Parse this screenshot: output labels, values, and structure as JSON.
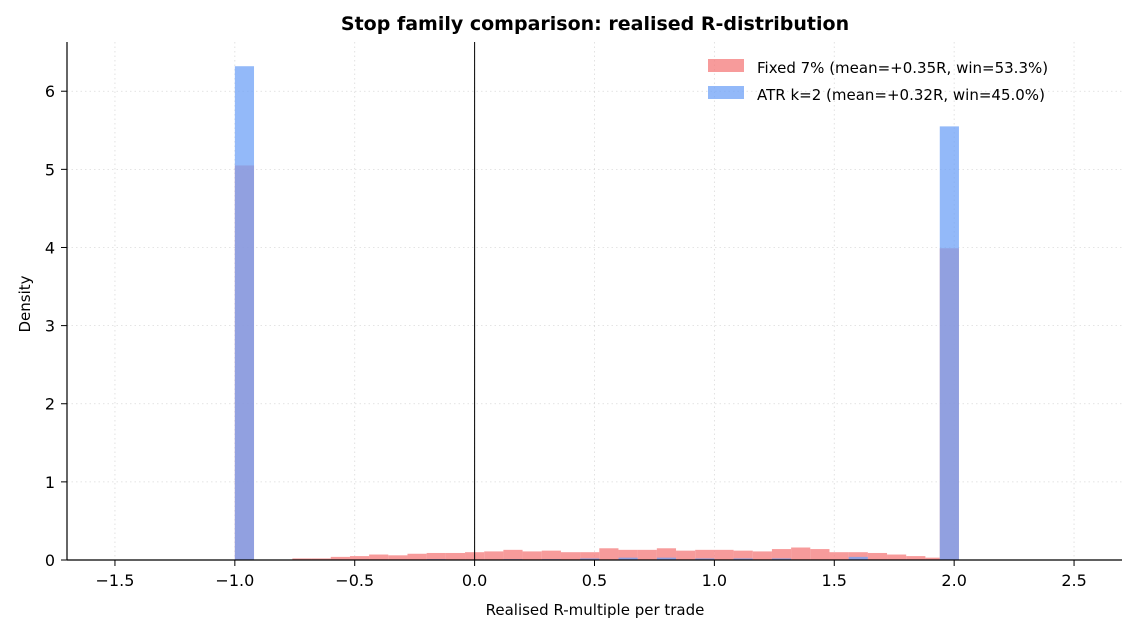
{
  "chart_data": {
    "type": "histogram",
    "title": "Stop family comparison: realised R-distribution",
    "xlabel": "Realised R-multiple per trade",
    "ylabel": "Density",
    "xlim": [
      -1.7,
      2.7
    ],
    "ylim": [
      0,
      6.63
    ],
    "x_ticks": [
      -1.5,
      -1.0,
      -0.5,
      0.0,
      0.5,
      1.0,
      1.5,
      2.0,
      2.5
    ],
    "x_tick_labels": [
      "−1.5",
      "−1.0",
      "−0.5",
      "0.0",
      "0.5",
      "1.0",
      "1.5",
      "2.0",
      "2.5"
    ],
    "y_ticks": [
      0,
      1,
      2,
      3,
      4,
      5,
      6
    ],
    "y_tick_labels": [
      "0",
      "1",
      "2",
      "3",
      "4",
      "5",
      "6"
    ],
    "grid": true,
    "legend_position": "top-right",
    "vline_x": 0.0,
    "series": [
      {
        "name": "Fixed 7% (mean=+0.35R, win=53.3%)",
        "color": "#f47a7a",
        "opacity": 0.75,
        "bins": [
          {
            "x0": -1.0,
            "x1": -0.92,
            "value": 5.05
          },
          {
            "x0": -0.76,
            "x1": -0.68,
            "value": 0.02
          },
          {
            "x0": -0.68,
            "x1": -0.6,
            "value": 0.02
          },
          {
            "x0": -0.6,
            "x1": -0.52,
            "value": 0.04
          },
          {
            "x0": -0.52,
            "x1": -0.44,
            "value": 0.05
          },
          {
            "x0": -0.44,
            "x1": -0.36,
            "value": 0.07
          },
          {
            "x0": -0.36,
            "x1": -0.28,
            "value": 0.06
          },
          {
            "x0": -0.28,
            "x1": -0.2,
            "value": 0.08
          },
          {
            "x0": -0.2,
            "x1": -0.12,
            "value": 0.09
          },
          {
            "x0": -0.12,
            "x1": -0.04,
            "value": 0.09
          },
          {
            "x0": -0.04,
            "x1": 0.04,
            "value": 0.1
          },
          {
            "x0": 0.04,
            "x1": 0.12,
            "value": 0.11
          },
          {
            "x0": 0.12,
            "x1": 0.2,
            "value": 0.13
          },
          {
            "x0": 0.2,
            "x1": 0.28,
            "value": 0.11
          },
          {
            "x0": 0.28,
            "x1": 0.36,
            "value": 0.12
          },
          {
            "x0": 0.36,
            "x1": 0.44,
            "value": 0.1
          },
          {
            "x0": 0.44,
            "x1": 0.52,
            "value": 0.1
          },
          {
            "x0": 0.52,
            "x1": 0.6,
            "value": 0.15
          },
          {
            "x0": 0.6,
            "x1": 0.68,
            "value": 0.13
          },
          {
            "x0": 0.68,
            "x1": 0.76,
            "value": 0.13
          },
          {
            "x0": 0.76,
            "x1": 0.84,
            "value": 0.15
          },
          {
            "x0": 0.84,
            "x1": 0.92,
            "value": 0.12
          },
          {
            "x0": 0.92,
            "x1": 1.0,
            "value": 0.13
          },
          {
            "x0": 1.0,
            "x1": 1.08,
            "value": 0.13
          },
          {
            "x0": 1.08,
            "x1": 1.16,
            "value": 0.12
          },
          {
            "x0": 1.16,
            "x1": 1.24,
            "value": 0.11
          },
          {
            "x0": 1.24,
            "x1": 1.32,
            "value": 0.14
          },
          {
            "x0": 1.32,
            "x1": 1.4,
            "value": 0.16
          },
          {
            "x0": 1.4,
            "x1": 1.48,
            "value": 0.14
          },
          {
            "x0": 1.48,
            "x1": 1.56,
            "value": 0.1
          },
          {
            "x0": 1.56,
            "x1": 1.64,
            "value": 0.1
          },
          {
            "x0": 1.64,
            "x1": 1.72,
            "value": 0.09
          },
          {
            "x0": 1.72,
            "x1": 1.8,
            "value": 0.07
          },
          {
            "x0": 1.8,
            "x1": 1.88,
            "value": 0.05
          },
          {
            "x0": 1.88,
            "x1": 1.94,
            "value": 0.03
          },
          {
            "x0": 1.94,
            "x1": 2.02,
            "value": 3.99
          }
        ]
      },
      {
        "name": "ATR k=2 (mean=+0.32R, win=45.0%)",
        "color": "#6fa2f7",
        "opacity": 0.75,
        "bins": [
          {
            "x0": -1.0,
            "x1": -0.92,
            "value": 6.32
          },
          {
            "x0": -0.2,
            "x1": -0.12,
            "value": 0.01
          },
          {
            "x0": 0.12,
            "x1": 0.2,
            "value": 0.01
          },
          {
            "x0": 0.28,
            "x1": 0.36,
            "value": 0.01
          },
          {
            "x0": 0.44,
            "x1": 0.52,
            "value": 0.02
          },
          {
            "x0": 0.6,
            "x1": 0.68,
            "value": 0.03
          },
          {
            "x0": 0.76,
            "x1": 0.84,
            "value": 0.03
          },
          {
            "x0": 0.92,
            "x1": 1.0,
            "value": 0.02
          },
          {
            "x0": 1.08,
            "x1": 1.16,
            "value": 0.02
          },
          {
            "x0": 1.24,
            "x1": 1.32,
            "value": 0.02
          },
          {
            "x0": 1.56,
            "x1": 1.64,
            "value": 0.04
          },
          {
            "x0": 1.94,
            "x1": 2.02,
            "value": 5.55
          }
        ]
      }
    ]
  }
}
